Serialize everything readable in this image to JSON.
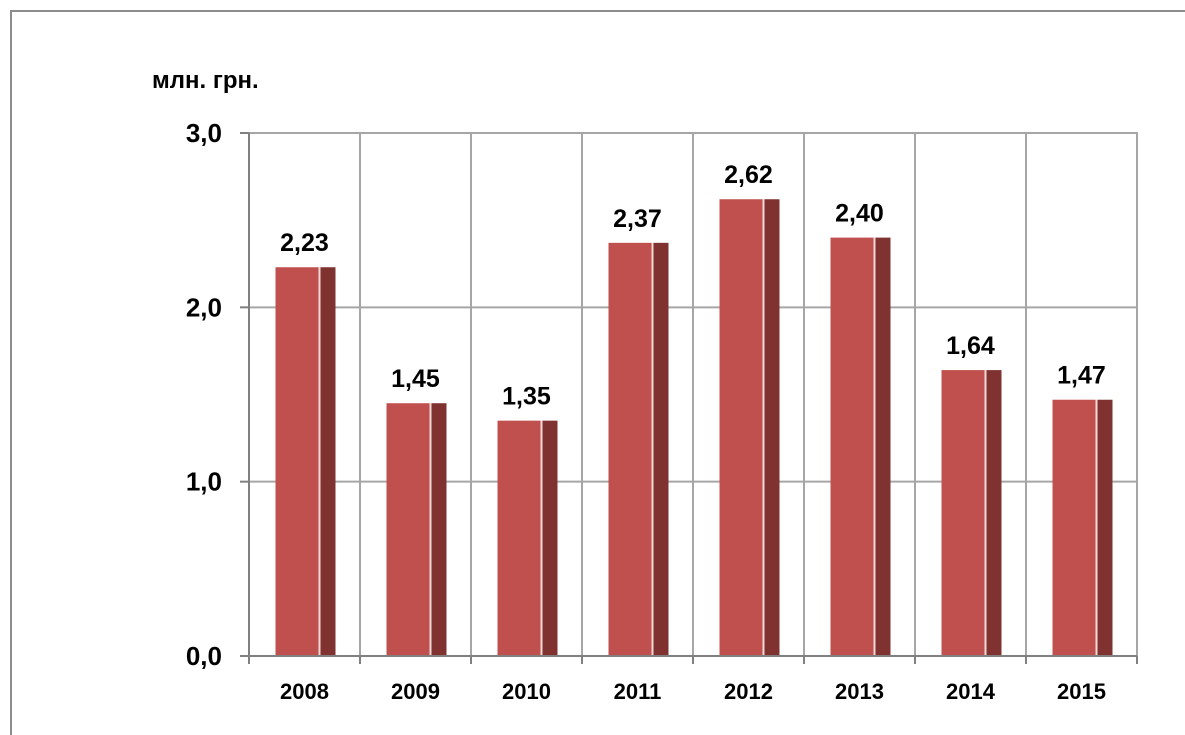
{
  "chart_data": {
    "type": "bar",
    "unit_label": "млн. грн.",
    "categories": [
      "2008",
      "2009",
      "2010",
      "2011",
      "2012",
      "2013",
      "2014",
      "2015"
    ],
    "values": [
      2.23,
      1.45,
      1.35,
      2.37,
      2.62,
      2.4,
      1.64,
      1.47
    ],
    "value_labels": [
      "2,23",
      "1,45",
      "1,35",
      "2,37",
      "2,62",
      "2,40",
      "1,64",
      "1,47"
    ],
    "yticks": [
      0,
      1,
      2,
      3
    ],
    "ytick_labels": [
      "0,0",
      "1,0",
      "2,0",
      "3,0"
    ],
    "ylim": [
      0,
      3
    ],
    "grid": true,
    "colors": {
      "bar_front": "#c0504d",
      "bar_side": "#7f3230",
      "grid": "#a6a6a6"
    }
  }
}
